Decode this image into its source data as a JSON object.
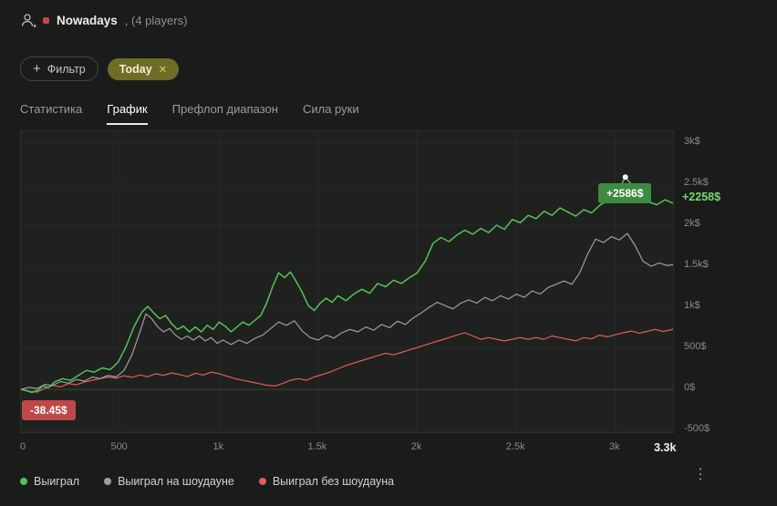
{
  "header": {
    "title": "Nowadays",
    "subtitle": ", (4 players)"
  },
  "filters": {
    "add_filter_label": "Фильтр",
    "plus_glyph": "+",
    "active_chip": {
      "label": "Today",
      "close_glyph": "✕"
    }
  },
  "tabs": [
    {
      "label": "Статистика",
      "active": false
    },
    {
      "label": "График",
      "active": true
    },
    {
      "label": "Префлоп диапазон",
      "active": false
    },
    {
      "label": "Сила руки",
      "active": false
    }
  ],
  "chart_data": {
    "type": "line",
    "xlim": [
      0,
      3300
    ],
    "ylim": [
      -500,
      3000
    ],
    "grid": true,
    "yticks": [
      {
        "label": "3k$",
        "value": 3000
      },
      {
        "label": "2.5k$",
        "value": 2500
      },
      {
        "label": "2k$",
        "value": 2000
      },
      {
        "label": "1.5k$",
        "value": 1500
      },
      {
        "label": "1k$",
        "value": 1000
      },
      {
        "label": "500$",
        "value": 500
      },
      {
        "label": "0$",
        "value": 0
      },
      {
        "label": "-500$",
        "value": -500
      }
    ],
    "xticks": [
      {
        "label": "0",
        "value": 0
      },
      {
        "label": "500",
        "value": 500
      },
      {
        "label": "1k",
        "value": 1000
      },
      {
        "label": "1.5k",
        "value": 1500
      },
      {
        "label": "2k",
        "value": 2000
      },
      {
        "label": "2.5k",
        "value": 2500
      },
      {
        "label": "3k",
        "value": 3000
      },
      {
        "label": "3.3k",
        "value": 3300,
        "emphasis": true
      }
    ],
    "series": [
      {
        "name": "Выиграл",
        "color": "#55c157",
        "width": 1.5,
        "points": [
          [
            0,
            0
          ],
          [
            25,
            -15
          ],
          [
            55,
            -38
          ],
          [
            85,
            -10
          ],
          [
            110,
            40
          ],
          [
            140,
            20
          ],
          [
            170,
            90
          ],
          [
            210,
            130
          ],
          [
            250,
            110
          ],
          [
            290,
            170
          ],
          [
            330,
            230
          ],
          [
            370,
            210
          ],
          [
            410,
            260
          ],
          [
            450,
            240
          ],
          [
            490,
            330
          ],
          [
            530,
            520
          ],
          [
            570,
            760
          ],
          [
            610,
            940
          ],
          [
            640,
            1010
          ],
          [
            670,
            930
          ],
          [
            700,
            860
          ],
          [
            730,
            900
          ],
          [
            760,
            800
          ],
          [
            790,
            730
          ],
          [
            820,
            770
          ],
          [
            850,
            700
          ],
          [
            880,
            760
          ],
          [
            910,
            700
          ],
          [
            940,
            780
          ],
          [
            970,
            730
          ],
          [
            1000,
            820
          ],
          [
            1030,
            770
          ],
          [
            1060,
            700
          ],
          [
            1090,
            760
          ],
          [
            1120,
            820
          ],
          [
            1150,
            780
          ],
          [
            1180,
            840
          ],
          [
            1210,
            900
          ],
          [
            1240,
            1050
          ],
          [
            1270,
            1250
          ],
          [
            1300,
            1420
          ],
          [
            1330,
            1360
          ],
          [
            1360,
            1430
          ],
          [
            1390,
            1310
          ],
          [
            1420,
            1180
          ],
          [
            1450,
            1020
          ],
          [
            1480,
            960
          ],
          [
            1510,
            1050
          ],
          [
            1540,
            1110
          ],
          [
            1570,
            1060
          ],
          [
            1600,
            1140
          ],
          [
            1640,
            1080
          ],
          [
            1680,
            1160
          ],
          [
            1720,
            1220
          ],
          [
            1760,
            1170
          ],
          [
            1800,
            1290
          ],
          [
            1840,
            1250
          ],
          [
            1880,
            1330
          ],
          [
            1920,
            1290
          ],
          [
            1960,
            1360
          ],
          [
            2000,
            1420
          ],
          [
            2040,
            1560
          ],
          [
            2080,
            1780
          ],
          [
            2120,
            1850
          ],
          [
            2160,
            1800
          ],
          [
            2200,
            1880
          ],
          [
            2240,
            1940
          ],
          [
            2280,
            1890
          ],
          [
            2320,
            1960
          ],
          [
            2360,
            1910
          ],
          [
            2400,
            2000
          ],
          [
            2440,
            1950
          ],
          [
            2480,
            2070
          ],
          [
            2520,
            2030
          ],
          [
            2560,
            2120
          ],
          [
            2600,
            2080
          ],
          [
            2640,
            2170
          ],
          [
            2680,
            2120
          ],
          [
            2720,
            2210
          ],
          [
            2760,
            2160
          ],
          [
            2800,
            2110
          ],
          [
            2840,
            2190
          ],
          [
            2880,
            2150
          ],
          [
            2920,
            2240
          ],
          [
            2960,
            2300
          ],
          [
            3000,
            2360
          ],
          [
            3050,
            2586
          ],
          [
            3090,
            2470
          ],
          [
            3130,
            2340
          ],
          [
            3170,
            2280
          ],
          [
            3210,
            2250
          ],
          [
            3250,
            2310
          ],
          [
            3300,
            2258
          ]
        ]
      },
      {
        "name": "Выиграл на шоудауне",
        "color": "#9e9e9e",
        "width": 1.2,
        "points": [
          [
            0,
            0
          ],
          [
            40,
            25
          ],
          [
            80,
            10
          ],
          [
            120,
            60
          ],
          [
            160,
            45
          ],
          [
            200,
            95
          ],
          [
            240,
            75
          ],
          [
            280,
            120
          ],
          [
            320,
            100
          ],
          [
            360,
            150
          ],
          [
            400,
            130
          ],
          [
            440,
            170
          ],
          [
            480,
            150
          ],
          [
            520,
            230
          ],
          [
            560,
            420
          ],
          [
            600,
            700
          ],
          [
            630,
            920
          ],
          [
            660,
            860
          ],
          [
            690,
            760
          ],
          [
            720,
            700
          ],
          [
            750,
            740
          ],
          [
            780,
            660
          ],
          [
            810,
            610
          ],
          [
            840,
            650
          ],
          [
            870,
            600
          ],
          [
            900,
            650
          ],
          [
            930,
            590
          ],
          [
            960,
            630
          ],
          [
            990,
            560
          ],
          [
            1020,
            600
          ],
          [
            1060,
            545
          ],
          [
            1100,
            600
          ],
          [
            1140,
            560
          ],
          [
            1180,
            620
          ],
          [
            1220,
            660
          ],
          [
            1260,
            740
          ],
          [
            1300,
            820
          ],
          [
            1340,
            780
          ],
          [
            1380,
            835
          ],
          [
            1420,
            710
          ],
          [
            1460,
            630
          ],
          [
            1500,
            600
          ],
          [
            1540,
            660
          ],
          [
            1580,
            625
          ],
          [
            1620,
            690
          ],
          [
            1660,
            730
          ],
          [
            1700,
            700
          ],
          [
            1740,
            760
          ],
          [
            1780,
            720
          ],
          [
            1820,
            790
          ],
          [
            1860,
            750
          ],
          [
            1900,
            830
          ],
          [
            1940,
            790
          ],
          [
            1980,
            870
          ],
          [
            2020,
            930
          ],
          [
            2060,
            1000
          ],
          [
            2100,
            1060
          ],
          [
            2140,
            1020
          ],
          [
            2180,
            980
          ],
          [
            2220,
            1050
          ],
          [
            2260,
            1090
          ],
          [
            2300,
            1050
          ],
          [
            2340,
            1120
          ],
          [
            2380,
            1080
          ],
          [
            2420,
            1140
          ],
          [
            2460,
            1100
          ],
          [
            2500,
            1160
          ],
          [
            2540,
            1120
          ],
          [
            2580,
            1200
          ],
          [
            2620,
            1160
          ],
          [
            2660,
            1240
          ],
          [
            2700,
            1280
          ],
          [
            2740,
            1320
          ],
          [
            2780,
            1280
          ],
          [
            2820,
            1420
          ],
          [
            2860,
            1650
          ],
          [
            2900,
            1830
          ],
          [
            2940,
            1790
          ],
          [
            2980,
            1860
          ],
          [
            3020,
            1820
          ],
          [
            3060,
            1900
          ],
          [
            3100,
            1750
          ],
          [
            3140,
            1560
          ],
          [
            3180,
            1500
          ],
          [
            3220,
            1540
          ],
          [
            3260,
            1510
          ],
          [
            3300,
            1520
          ]
        ]
      },
      {
        "name": "Выиграл без шоудауна",
        "color": "#e05c5c",
        "width": 1.2,
        "points": [
          [
            0,
            0
          ],
          [
            40,
            -25
          ],
          [
            80,
            -35
          ],
          [
            120,
            10
          ],
          [
            160,
            45
          ],
          [
            200,
            30
          ],
          [
            240,
            70
          ],
          [
            280,
            55
          ],
          [
            320,
            90
          ],
          [
            360,
            110
          ],
          [
            400,
            130
          ],
          [
            440,
            150
          ],
          [
            480,
            135
          ],
          [
            520,
            165
          ],
          [
            560,
            145
          ],
          [
            600,
            175
          ],
          [
            640,
            155
          ],
          [
            680,
            190
          ],
          [
            720,
            170
          ],
          [
            760,
            200
          ],
          [
            800,
            180
          ],
          [
            840,
            155
          ],
          [
            880,
            195
          ],
          [
            920,
            175
          ],
          [
            960,
            210
          ],
          [
            1000,
            190
          ],
          [
            1040,
            160
          ],
          [
            1080,
            130
          ],
          [
            1120,
            110
          ],
          [
            1160,
            90
          ],
          [
            1200,
            70
          ],
          [
            1240,
            50
          ],
          [
            1280,
            40
          ],
          [
            1320,
            70
          ],
          [
            1360,
            110
          ],
          [
            1400,
            130
          ],
          [
            1440,
            110
          ],
          [
            1480,
            150
          ],
          [
            1520,
            180
          ],
          [
            1560,
            210
          ],
          [
            1600,
            250
          ],
          [
            1640,
            290
          ],
          [
            1680,
            320
          ],
          [
            1720,
            350
          ],
          [
            1760,
            380
          ],
          [
            1800,
            410
          ],
          [
            1840,
            440
          ],
          [
            1880,
            420
          ],
          [
            1920,
            450
          ],
          [
            1960,
            480
          ],
          [
            2000,
            510
          ],
          [
            2040,
            540
          ],
          [
            2080,
            570
          ],
          [
            2120,
            600
          ],
          [
            2160,
            630
          ],
          [
            2200,
            660
          ],
          [
            2240,
            690
          ],
          [
            2280,
            650
          ],
          [
            2320,
            610
          ],
          [
            2360,
            630
          ],
          [
            2400,
            610
          ],
          [
            2440,
            590
          ],
          [
            2480,
            610
          ],
          [
            2520,
            630
          ],
          [
            2560,
            610
          ],
          [
            2600,
            630
          ],
          [
            2640,
            610
          ],
          [
            2680,
            650
          ],
          [
            2720,
            630
          ],
          [
            2760,
            610
          ],
          [
            2800,
            590
          ],
          [
            2840,
            630
          ],
          [
            2880,
            615
          ],
          [
            2920,
            660
          ],
          [
            2960,
            640
          ],
          [
            3000,
            665
          ],
          [
            3040,
            690
          ],
          [
            3080,
            710
          ],
          [
            3120,
            685
          ],
          [
            3160,
            705
          ],
          [
            3200,
            730
          ],
          [
            3240,
            705
          ],
          [
            3280,
            725
          ],
          [
            3300,
            745
          ]
        ]
      }
    ],
    "marker": {
      "x": 3050,
      "y": 2586,
      "color": "#ffffff"
    },
    "annotations": {
      "peak_badge": {
        "text": "+2586$",
        "bg": "#3e8a42"
      },
      "start_badge": {
        "text": "-38.45$",
        "bg": "#bf4848"
      },
      "current_value": {
        "text": "+2258$",
        "color": "#76d876"
      }
    },
    "grid_color": "#272b27",
    "zero_line_color": "#3c403c"
  },
  "legend": [
    {
      "label": "Выиграл",
      "color": "#55c157"
    },
    {
      "label": "Выиграл на шоудауне",
      "color": "#9e9e9e"
    },
    {
      "label": "Выиграл без шоудауна",
      "color": "#e05c5c"
    }
  ],
  "more_glyph": "⋮"
}
